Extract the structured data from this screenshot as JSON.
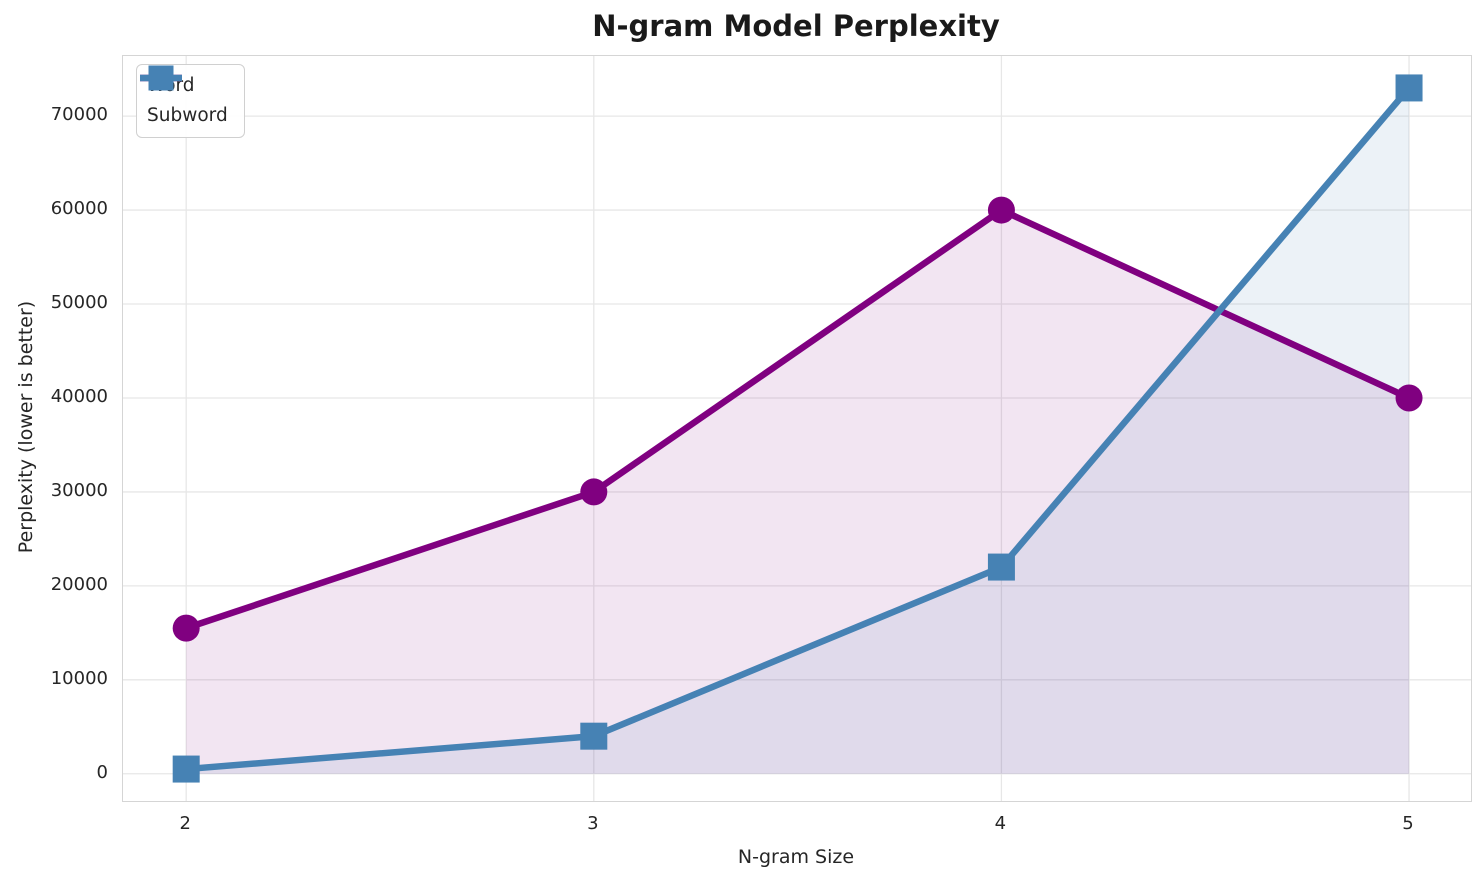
{
  "figure": {
    "title": "N-gram Model Perplexity"
  },
  "chart_data": {
    "type": "line",
    "title": "N-gram Model Perplexity",
    "xlabel": "N-gram Size",
    "ylabel": "Perplexity (lower is better)",
    "x": [
      2,
      3,
      4,
      5
    ],
    "x_tick_labels": [
      "2",
      "3",
      "4",
      "5"
    ],
    "y_ticks": [
      0,
      10000,
      20000,
      30000,
      40000,
      50000,
      60000,
      70000
    ],
    "y_tick_labels": [
      "0",
      "10000",
      "20000",
      "30000",
      "40000",
      "50000",
      "60000",
      "70000"
    ],
    "xlim": [
      1.845,
      5.152
    ],
    "ylim": [
      -2900,
      76400
    ],
    "grid": true,
    "legend_position": "upper-left",
    "series": [
      {
        "name": "Word",
        "color": "#800080",
        "marker": "circle",
        "values": [
          15500,
          30000,
          60000,
          40000
        ],
        "fill_to_zero": true,
        "fill_alpha": 0.1
      },
      {
        "name": "Subword",
        "color": "#4682B4",
        "marker": "square",
        "values": [
          500,
          4000,
          22000,
          73000
        ],
        "fill_to_zero": true,
        "fill_alpha": 0.1
      }
    ],
    "style": {
      "grid_color": "#e7e7e7",
      "spine_color": "#d5d5d5",
      "text_color": "#262626",
      "line_width": 6.5,
      "marker_size": 27
    }
  }
}
